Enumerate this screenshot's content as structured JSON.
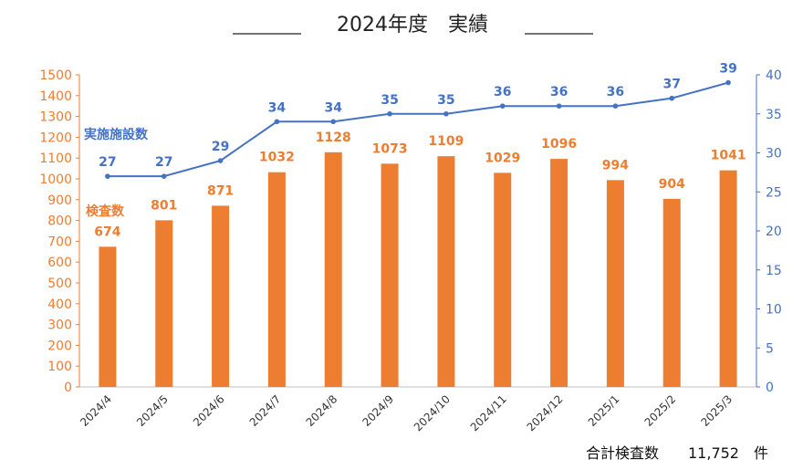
{
  "chart_data": {
    "type": "bar",
    "title": "2024年度　実績",
    "categories": [
      "2024/4",
      "2024/5",
      "2024/6",
      "2024/7",
      "2024/8",
      "2024/9",
      "2024/10",
      "2024/11",
      "2024/12",
      "2025/1",
      "2025/2",
      "2025/3"
    ],
    "series": [
      {
        "name": "検査数",
        "type": "bar",
        "axis": "left",
        "values": [
          674,
          801,
          871,
          1032,
          1128,
          1073,
          1109,
          1029,
          1096,
          994,
          904,
          1041
        ],
        "color": "#ED7D31"
      },
      {
        "name": "実施施設数",
        "type": "line",
        "axis": "right",
        "values": [
          27,
          27,
          29,
          34,
          34,
          35,
          35,
          36,
          36,
          36,
          37,
          39
        ],
        "color": "#4472C4"
      }
    ],
    "ylim_left": [
      0,
      1500
    ],
    "ylim_right": [
      0,
      40
    ],
    "yticks_left": [
      0,
      100,
      200,
      300,
      400,
      500,
      600,
      700,
      800,
      900,
      1000,
      1100,
      1200,
      1300,
      1400,
      1500
    ],
    "yticks_right": [
      0,
      5,
      10,
      15,
      20,
      25,
      30,
      35,
      40
    ],
    "grid": false,
    "footer": "合計検査数　　11,752　件",
    "left_axis_color": "#ED7D31",
    "right_axis_color": "#4472C4"
  }
}
